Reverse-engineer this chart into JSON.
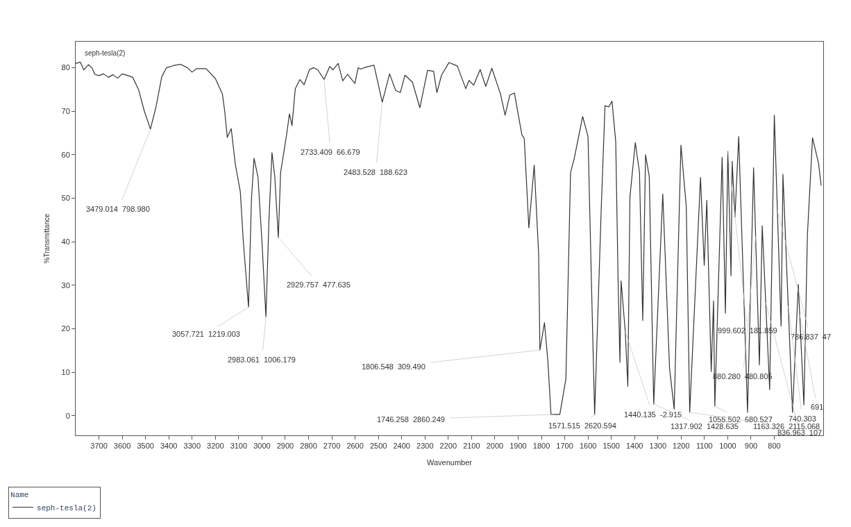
{
  "chart_data": {
    "type": "line",
    "xlabel": "Wavenumber",
    "ylabel": "%Transmittance",
    "legend_title": "Name",
    "xlim": [
      3800,
      590
    ],
    "xticks": [
      3700,
      3600,
      3500,
      3400,
      3300,
      3200,
      3100,
      3000,
      2900,
      2800,
      2700,
      2600,
      2500,
      2400,
      2300,
      2200,
      2100,
      2000,
      1900,
      1800,
      1700,
      1600,
      1500,
      1400,
      1300,
      1200,
      1100,
      1000,
      900,
      800
    ],
    "ylim": [
      -4.5,
      86
    ],
    "yticks": [
      0,
      10,
      20,
      30,
      40,
      50,
      60,
      70,
      80
    ],
    "legend": "bottom left",
    "line_style": "solid",
    "series": [
      {
        "name": "seph-tesla(2)",
        "color": "#333333",
        "x": [
          3800,
          3780,
          3765,
          3745,
          3730,
          3718,
          3700,
          3680,
          3660,
          3640,
          3620,
          3600,
          3575,
          3555,
          3530,
          3505,
          3479.014,
          3455,
          3430,
          3410,
          3380,
          3350,
          3320,
          3300,
          3280,
          3240,
          3200,
          3170,
          3160,
          3149,
          3132,
          3115,
          3093,
          3080,
          3057.721,
          3045,
          3034,
          3017,
          3000,
          2983.061,
          2970,
          2957,
          2945,
          2929.757,
          2920,
          2894,
          2882,
          2871,
          2857,
          2837,
          2819,
          2796,
          2778,
          2760,
          2733.409,
          2709,
          2695,
          2673,
          2653,
          2633,
          2601,
          2587,
          2577,
          2550,
          2519,
          2483.528,
          2452,
          2426,
          2406,
          2386,
          2354,
          2322,
          2289,
          2263,
          2249,
          2229,
          2197,
          2161,
          2125,
          2111,
          2091,
          2063,
          2039,
          2013,
          1976,
          1956,
          1936,
          1916,
          1884,
          1874,
          1854,
          1831,
          1812,
          1806.548,
          1787,
          1772,
          1759,
          1721,
          1695,
          1675,
          1659,
          1623,
          1600,
          1585,
          1571.515,
          1543,
          1527,
          1511,
          1497,
          1481,
          1471,
          1463,
          1458,
          1440.135,
          1429,
          1420,
          1397,
          1379,
          1365,
          1353,
          1337,
          1317.902,
          1279,
          1250,
          1230,
          1201,
          1178,
          1163.326,
          1117,
          1101,
          1090,
          1071,
          1061,
          1055.502,
          1024,
          1010,
          999.602,
          986,
          981,
          969,
          953,
          915,
          889,
          864,
          852,
          820,
          800,
          771,
          763,
          722,
          697,
          673,
          658,
          636,
          610,
          599
        ],
        "values": [
          81,
          81.3,
          79.5,
          80.7,
          80,
          78.5,
          78.2,
          78.6,
          77.8,
          78.4,
          77.6,
          78.6,
          78.2,
          77.8,
          75,
          70,
          65.9,
          71,
          78,
          80,
          80.5,
          80.8,
          80,
          79,
          79.8,
          79.8,
          77.5,
          74,
          70,
          64,
          66,
          58,
          51.5,
          40,
          25,
          50,
          59.2,
          54.8,
          40,
          22.8,
          45,
          60.5,
          55,
          41,
          55.9,
          64.7,
          69.4,
          66.7,
          75.2,
          77.3,
          76.1,
          79.6,
          80,
          79.5,
          77.3,
          80.3,
          79.5,
          81,
          77,
          78.5,
          76.4,
          80,
          79.7,
          80.2,
          80.6,
          72.1,
          78.6,
          74.8,
          74.3,
          78.3,
          76.7,
          70.8,
          79.4,
          79.2,
          74.3,
          78.3,
          81.2,
          80.4,
          75.2,
          77.1,
          76,
          79.6,
          75.7,
          79.9,
          74,
          69.1,
          73.7,
          74.2,
          64.6,
          63.8,
          43.2,
          57.6,
          37.2,
          15.1,
          21.4,
          12.3,
          0.3,
          0.3,
          8.5,
          55.9,
          59.2,
          68.8,
          64.2,
          30,
          0.3,
          48,
          71.3,
          71,
          72.3,
          63,
          31.6,
          12.3,
          31,
          19.4,
          6.8,
          50.3,
          62.8,
          56,
          21.9,
          60,
          55,
          2.7,
          51,
          11,
          1.5,
          62.2,
          48,
          0.8,
          54.8,
          34.6,
          49.5,
          10.2,
          26.4,
          2.2,
          59.4,
          23.6,
          60.8,
          32.2,
          58.5,
          45.7,
          64.2,
          0.8,
          57,
          11.7,
          43.7,
          6,
          69.1,
          20.6,
          55.5,
          0.8,
          30.2,
          2.5,
          41.5,
          63.9,
          58,
          53
        ]
      }
    ],
    "annotations": [
      "seph-tesla(2)",
      {
        "text": "3479.014  798.980",
        "x": 3479.014,
        "y": 65.9
      },
      {
        "text": "3057.721  1219.003",
        "x": 3057.721,
        "y": 25
      },
      {
        "text": "2983.061  1006.179",
        "x": 2983.061,
        "y": 22.8
      },
      {
        "text": "2929.757  477.635",
        "x": 2929.757,
        "y": 41
      },
      {
        "text": "2733.409  66.679",
        "x": 2733.409,
        "y": 77.3
      },
      {
        "text": "2483.528  188.623",
        "x": 2483.528,
        "y": 72.1
      },
      {
        "text": "1806.548  309.490",
        "x": 1806.548,
        "y": 15.1
      },
      {
        "text": "1746.258  2860.249",
        "x": 1746.258,
        "y": 0.3
      },
      {
        "text": "1571.515  2620.594",
        "x": 1571.515,
        "y": 0.3
      },
      {
        "text": "1440.135  -2.915",
        "x": 1440.135,
        "y": 19.4
      },
      {
        "text": "1317.902  1428.635",
        "x": 1317.902,
        "y": 2.7
      },
      {
        "text": "1055.502  680.527",
        "x": 1055.502,
        "y": 2.2
      },
      {
        "text": "1163.326  2115.068",
        "x": 1163.326,
        "y": 0.8
      },
      {
        "text": "999.602  181.859",
        "x": 999.602,
        "y": 60.8
      },
      {
        "text": "880.280  480.805",
        "x": 880.28,
        "y": 41.2
      },
      {
        "text": "786.837  47",
        "x": 786.837,
        "y": 47.1
      },
      {
        "text": "740.303",
        "x": 740.303,
        "y": 25.2
      },
      {
        "text": "691",
        "x": 691,
        "y": 23.3
      },
      {
        "text": "836.963  107",
        "x": 836.963,
        "y": 26
      }
    ]
  }
}
